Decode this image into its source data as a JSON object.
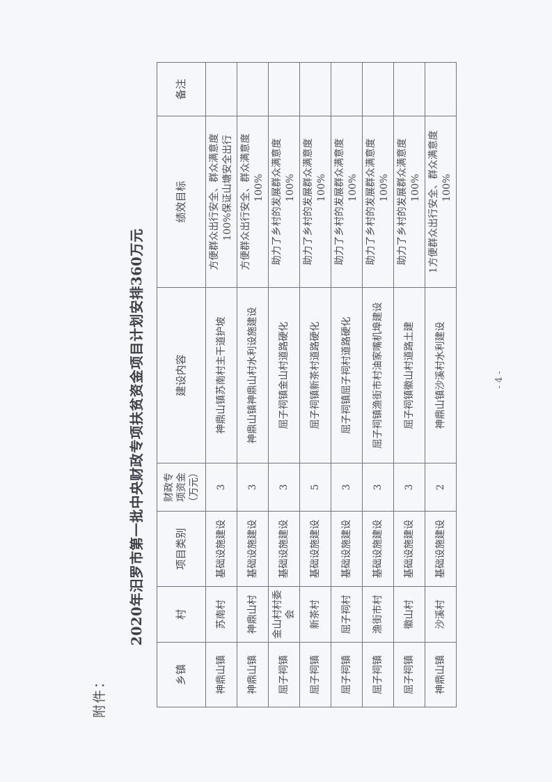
{
  "attachment_label": "附件：",
  "title": "2020年汨罗市第一批中央财政专项扶贫资金项目计划安排360万元",
  "page_number": "- 4 -",
  "table": {
    "headers": [
      "乡镇",
      "村",
      "项目类别",
      "财政专项资金（万元）",
      "建设内容",
      "绩效目标",
      "备注"
    ],
    "header_fund_lines": [
      "财政专",
      "项资金",
      "（万元）"
    ],
    "rows": [
      {
        "town": "神鼎山镇",
        "village": "苏南村",
        "category": "基础设施建设",
        "fund": "3",
        "content": "神鼎山镇苏南村主干道护坡",
        "goal": [
          "方便群众出行安全、群众满意度",
          "100%保证山塘安全出行"
        ],
        "note": ""
      },
      {
        "town": "神鼎山镇",
        "village": "神鼎山村",
        "category": "基础设施建设",
        "fund": "3",
        "content": "神鼎山镇神鼎山村水利设施建设",
        "goal": [
          "方便群众出行安全、群众满意度",
          "100%"
        ],
        "note": ""
      },
      {
        "town": "屈子祠镇",
        "village": "金山村村委会",
        "category": "基础设施建设",
        "fund": "3",
        "content": "屈子祠镇金山村道路硬化",
        "goal": [
          "助力了乡村的发展群众满意度",
          "100%"
        ],
        "note": ""
      },
      {
        "town": "屈子祠镇",
        "village": "新茶村",
        "category": "基础设施建设",
        "fund": "5",
        "content": "屈子祠镇新茶村道路硬化",
        "goal": [
          "助力了乡村的发展群众满意度",
          "100%"
        ],
        "note": ""
      },
      {
        "town": "屈子祠镇",
        "village": "屈子祠村",
        "category": "基础设施建设",
        "fund": "3",
        "content": "屈子祠镇屈子祠村道路硬化",
        "goal": [
          "助力了乡村的发展群众满意度",
          "100%"
        ],
        "note": ""
      },
      {
        "town": "屈子祠镇",
        "village": "渔街市村",
        "category": "基础设施建设",
        "fund": "3",
        "content": "屈子祠镇渔街市村油家嘴机埠建设",
        "goal": [
          "助力了乡村的发展群众满意度",
          "100%"
        ],
        "note": ""
      },
      {
        "town": "屈子祠镇",
        "village": "徽山村",
        "category": "基础设施建设",
        "fund": "3",
        "content": "屈子祠镇徽山村道路土建",
        "goal": [
          "助力了乡村的发展群众满意度",
          "100%"
        ],
        "note": ""
      },
      {
        "town": "神鼎山镇",
        "village": "沙溪村",
        "category": "基础设施建设",
        "fund": "2",
        "content": "神鼎山镇沙溪村水利建设",
        "goal": [
          "1方便群众出行安全、群众满意度",
          "100%"
        ],
        "note": ""
      }
    ]
  }
}
